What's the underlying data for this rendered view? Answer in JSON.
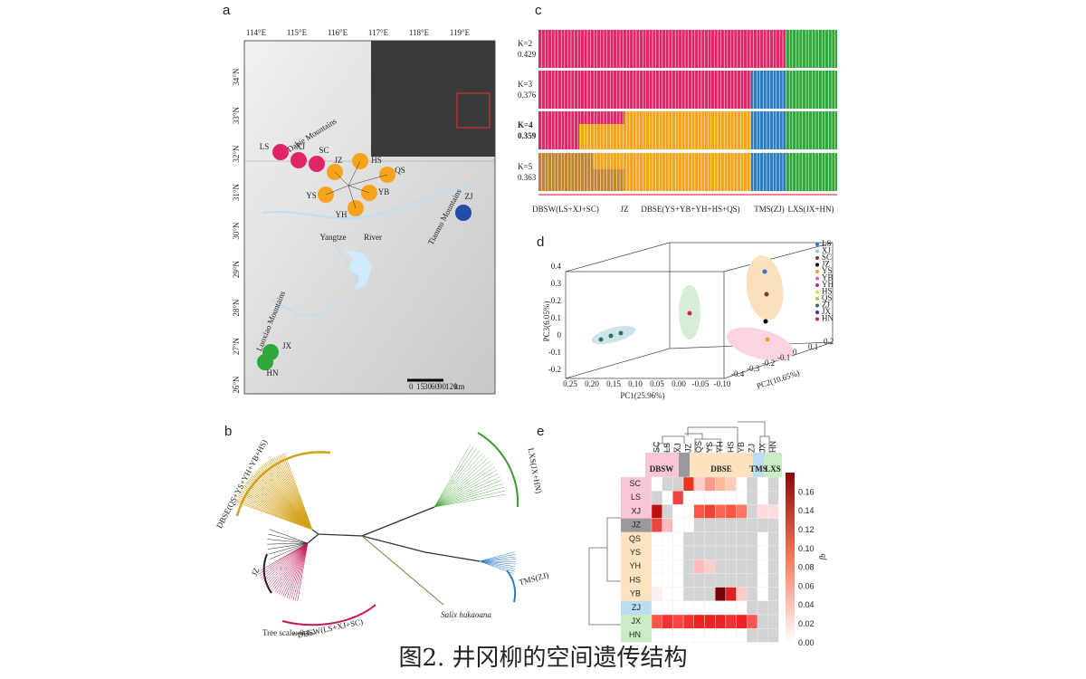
{
  "panels": {
    "a": {
      "label": "a",
      "lon_ticks": [
        "114°E",
        "115°E",
        "116°E",
        "117°E",
        "118°E",
        "119°E"
      ],
      "lat_ticks": [
        "34°N",
        "33°N",
        "32°N",
        "31°N",
        "30°N",
        "29°N",
        "28°N",
        "27°N",
        "26°N"
      ],
      "sites": [
        "LS",
        "XJ",
        "SC",
        "JZ",
        "HS",
        "QS",
        "YS",
        "YB",
        "YH",
        "ZJ",
        "JX",
        "HN"
      ],
      "features": [
        "Dabie Mountains",
        "Yangtze",
        "River",
        "Tianmu Mountains",
        "Luoxiao Mountains"
      ],
      "scale": [
        "0",
        "15",
        "30",
        "60",
        "90",
        "120"
      ],
      "scale_unit": "km"
    },
    "b": {
      "label": "b",
      "groups": [
        "DBSE(QS+YS+YH+YB+HS)",
        "LXS(JX+HN)",
        "TMS(ZJ)",
        "JZ",
        "DBSW(LS+XJ+SC)"
      ],
      "outgroup": "Salix hukaoana",
      "scale": "Tree scale: 0.1"
    },
    "c": {
      "label": "c",
      "rows": [
        {
          "k": "K=2",
          "cv": "0.429"
        },
        {
          "k": "K=3",
          "cv": "0.376"
        },
        {
          "k": "K=4",
          "cv": "0.359"
        },
        {
          "k": "K=5",
          "cv": "0.363"
        }
      ],
      "groups": [
        "DBSW(LS+XJ+SC)",
        "JZ",
        "DBSE(YS+YB+YH+HS+QS)",
        "TMS(ZJ)",
        "LXS(JX+HN)"
      ]
    },
    "d": {
      "label": "d",
      "xlabel": "PC1(25.96%)",
      "ylabel": "PC3(6.05%)",
      "zlabel": "PC2(10.65%)",
      "xticks": [
        "0.25",
        "0.20",
        "0.15",
        "0.10",
        "0.05",
        "0.00",
        "-0.05",
        "-0.10"
      ],
      "yticks": [
        "0.4",
        "0.3",
        "0.2",
        "0.1",
        "0",
        "-0.1",
        "-0.2"
      ],
      "zticks": [
        "-0.4",
        "-0.3",
        "-0.2",
        "-0.1",
        "0",
        "0.1",
        "0.2"
      ],
      "legend": [
        "LS",
        "XJ",
        "SC",
        "JZ",
        "YS",
        "YB",
        "YH",
        "HS",
        "QS",
        "ZJ",
        "JX",
        "HN"
      ]
    },
    "e": {
      "label": "e",
      "rows": [
        "SC",
        "LS",
        "XJ",
        "JZ",
        "QS",
        "YS",
        "YH",
        "HS",
        "YB",
        "ZJ",
        "JX",
        "HN"
      ],
      "columns": [
        "SC",
        "LS",
        "XJ",
        "JZ",
        "QS",
        "YS",
        "YH",
        "HS",
        "YB",
        "ZJ",
        "JX",
        "HN"
      ],
      "groups": [
        "DBSW",
        "DBSE",
        "TMS",
        "LXS"
      ],
      "colorbar_ticks": [
        "0.16",
        "0.14",
        "0.12",
        "0.10",
        "0.08",
        "0.06",
        "0.04",
        "0.02",
        "0.00"
      ],
      "colorbar_label": "fb"
    }
  },
  "caption": "图2.  井冈柳的空间遗传结构"
}
